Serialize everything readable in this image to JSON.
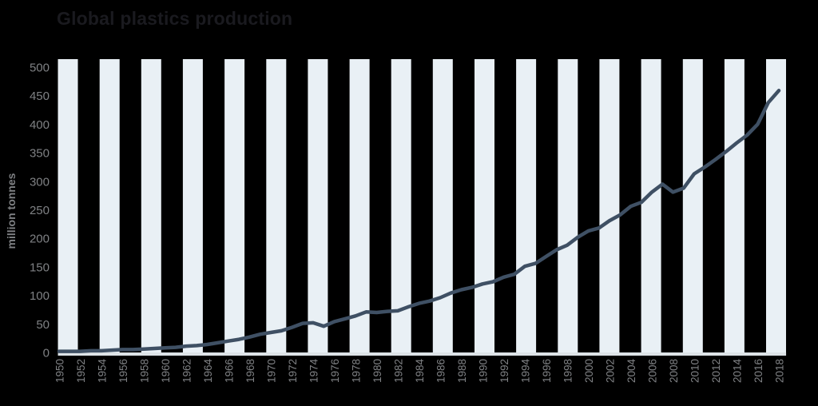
{
  "title": "Global plastics production",
  "y_axis_label": "million tonnes",
  "chart_data": {
    "type": "line",
    "title": "Global plastics production",
    "xlabel": "",
    "ylabel": "million tonnes",
    "ylim": [
      0,
      500
    ],
    "y_ticks": [
      0,
      50,
      100,
      150,
      200,
      250,
      300,
      350,
      400,
      450,
      500
    ],
    "x_ticks": [
      1950,
      1952,
      1954,
      1956,
      1958,
      1960,
      1962,
      1964,
      1966,
      1968,
      1970,
      1972,
      1974,
      1976,
      1978,
      1980,
      1982,
      1984,
      1986,
      1988,
      1990,
      1992,
      1994,
      1996,
      1998,
      2000,
      2002,
      2004,
      2006,
      2008,
      2010,
      2012,
      2014,
      2016,
      2018
    ],
    "grid": "vertical-stripes",
    "legend": "none",
    "series": [
      {
        "name": "Global plastics production (million tonnes)",
        "x_start": 1950,
        "x_step": 1,
        "values": [
          2,
          2,
          2,
          3,
          3,
          4,
          5,
          5,
          6,
          7,
          8,
          9,
          11,
          12,
          14,
          17,
          20,
          23,
          27,
          32,
          35,
          38,
          44,
          51,
          52,
          46,
          54,
          59,
          64,
          71,
          70,
          72,
          73,
          80,
          86,
          90,
          96,
          104,
          110,
          114,
          120,
          124,
          132,
          137,
          151,
          156,
          168,
          180,
          188,
          202,
          213,
          218,
          231,
          241,
          256,
          263,
          281,
          295,
          281,
          288,
          313,
          325,
          338,
          352,
          367,
          381,
          400,
          438,
          459
        ]
      }
    ],
    "colors": {
      "background": "#000000",
      "stripe": "#e9f0f5",
      "axis_band": "#dde3e7",
      "line": "#3f5064",
      "tick_text": "#7f8184",
      "title_text": "#1a1a1f",
      "y_axis_label_text": "#7f8184"
    }
  }
}
